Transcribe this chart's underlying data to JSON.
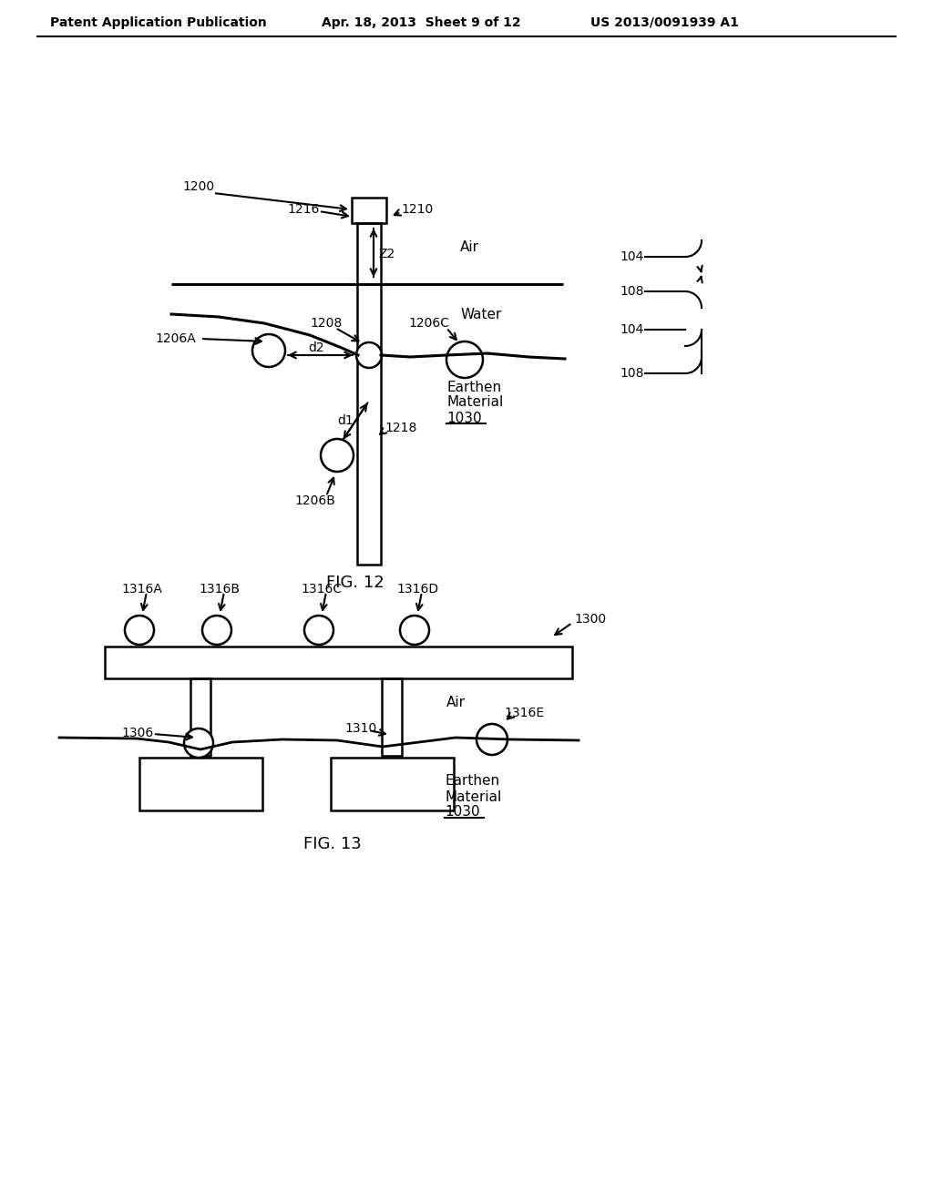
{
  "bg_color": "#ffffff",
  "header_left": "Patent Application Publication",
  "header_mid": "Apr. 18, 2013  Sheet 9 of 12",
  "header_right": "US 2013/0091939 A1",
  "fig12_label": "FIG. 12",
  "fig13_label": "FIG. 13",
  "text_color": "#000000"
}
